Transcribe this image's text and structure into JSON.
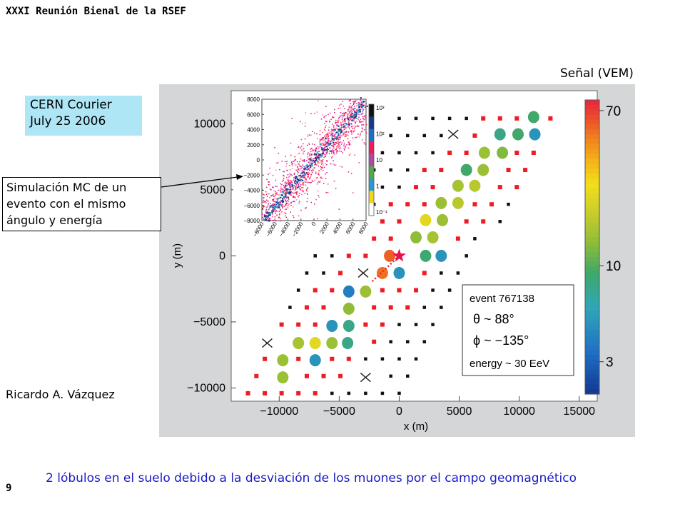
{
  "header": "XXXI Reunión Bienal de la RSEF",
  "signal_label": "Señal (VEM)",
  "cern_box": {
    "line1": "CERN Courier",
    "line2": "July 25 2006"
  },
  "sim_box": {
    "line1": "Simulación MC de un",
    "line2": "evento con el mismo",
    "line3": "ángulo y energía"
  },
  "author": "Ricardo A. Vázquez",
  "caption": "2 lóbulos en el suelo debido a la desviación de los muones por el campo geomagnético",
  "page_number": "9",
  "colors": {
    "figure_bg": "#d4d6d7",
    "caption": "#1a1ac8",
    "box_bg": "#aee6f6"
  },
  "chart_data": [
    {
      "type": "scatter",
      "title": "",
      "xlabel": "x (m)",
      "ylabel": "y (m)",
      "xlim": [
        -14000,
        16500
      ],
      "ylim": [
        -11000,
        12500
      ],
      "xticks": [
        -10000,
        -5000,
        0,
        5000,
        10000,
        15000
      ],
      "xtick_labels": [
        "−10000",
        "−5000",
        "0",
        "5000",
        "10000",
        "15000"
      ],
      "yticks": [
        -10000,
        -5000,
        0,
        5000,
        10000
      ],
      "ytick_labels": [
        "−10000",
        "−5000",
        "0",
        "5000",
        "10000"
      ],
      "annotation": {
        "line1": "event 767138",
        "line2": "θ ~ 88°",
        "line3": "ϕ ~ −135°",
        "line4": "energy ~ 30 EeV"
      },
      "colorbar": {
        "label": "Señal (VEM)",
        "tick_labels": [
          "70",
          "10",
          "3"
        ],
        "ticks": [
          70,
          10,
          3
        ],
        "range": [
          2,
          80
        ],
        "scale": "log"
      },
      "stations_hit": [
        {
          "x": 11200,
          "y": 10500,
          "vem": 9.5
        },
        {
          "x": 8400,
          "y": 9200,
          "vem": 8
        },
        {
          "x": 9900,
          "y": 9200,
          "vem": 9.5
        },
        {
          "x": 11300,
          "y": 9200,
          "vem": 5
        },
        {
          "x": 7100,
          "y": 7800,
          "vem": 15
        },
        {
          "x": 8600,
          "y": 7800,
          "vem": 13
        },
        {
          "x": 5600,
          "y": 6500,
          "vem": 9.5
        },
        {
          "x": 7000,
          "y": 6500,
          "vem": 15
        },
        {
          "x": 4900,
          "y": 5300,
          "vem": 16
        },
        {
          "x": 6300,
          "y": 5300,
          "vem": 18
        },
        {
          "x": 3500,
          "y": 4000,
          "vem": 15
        },
        {
          "x": 4900,
          "y": 4000,
          "vem": 18
        },
        {
          "x": 2200,
          "y": 2700,
          "vem": 25
        },
        {
          "x": 3600,
          "y": 2700,
          "vem": 15
        },
        {
          "x": 1400,
          "y": 1400,
          "vem": 14
        },
        {
          "x": 2800,
          "y": 1400,
          "vem": 16
        },
        {
          "x": -800,
          "y": 0,
          "vem": 60
        },
        {
          "x": 2200,
          "y": 0,
          "vem": 9
        },
        {
          "x": 3500,
          "y": 0,
          "vem": 5
        },
        {
          "x": -1400,
          "y": -1300,
          "vem": 55
        },
        {
          "x": 0,
          "y": -1300,
          "vem": 5
        },
        {
          "x": -4200,
          "y": -2700,
          "vem": 4
        },
        {
          "x": -2800,
          "y": -2700,
          "vem": 15
        },
        {
          "x": -4200,
          "y": -4000,
          "vem": 14
        },
        {
          "x": -5600,
          "y": -5300,
          "vem": 5
        },
        {
          "x": -4200,
          "y": -5300,
          "vem": 8
        },
        {
          "x": -8400,
          "y": -6600,
          "vem": 16
        },
        {
          "x": -7000,
          "y": -6600,
          "vem": 25
        },
        {
          "x": -5600,
          "y": -6600,
          "vem": 15
        },
        {
          "x": -4300,
          "y": -6600,
          "vem": 8
        },
        {
          "x": -9700,
          "y": -7900,
          "vem": 15
        },
        {
          "x": -7000,
          "y": -7900,
          "vem": 5
        },
        {
          "x": -9700,
          "y": -9200,
          "vem": 15
        }
      ],
      "shower_core": {
        "x": 0,
        "y": 0
      },
      "inactive_stations": [
        {
          "x": 4500,
          "y": 9200
        },
        {
          "x": -3000,
          "y": -1300
        },
        {
          "x": 12900,
          "y": -2600
        },
        {
          "x": -11000,
          "y": -6600
        },
        {
          "x": -2800,
          "y": -9200
        }
      ]
    },
    {
      "type": "heatmap",
      "title": "",
      "xlabel": "",
      "ylabel": "",
      "xlim": [
        -8000,
        8000
      ],
      "ylim": [
        -8000,
        8000
      ],
      "xtick_labels": [
        "−8000",
        "−6000",
        "−4000",
        "−2000",
        "0",
        "2000",
        "4000",
        "6000",
        "8000"
      ],
      "ytick_labels": [
        "8000",
        "6000",
        "4000",
        "2000",
        "0",
        "−2000",
        "−4000",
        "−6000",
        "−8000"
      ],
      "colorbar_tick_labels": [
        "10³",
        "10²",
        "10",
        "1",
        "10⁻¹"
      ],
      "distribution": "diagonal band along y = x"
    }
  ]
}
